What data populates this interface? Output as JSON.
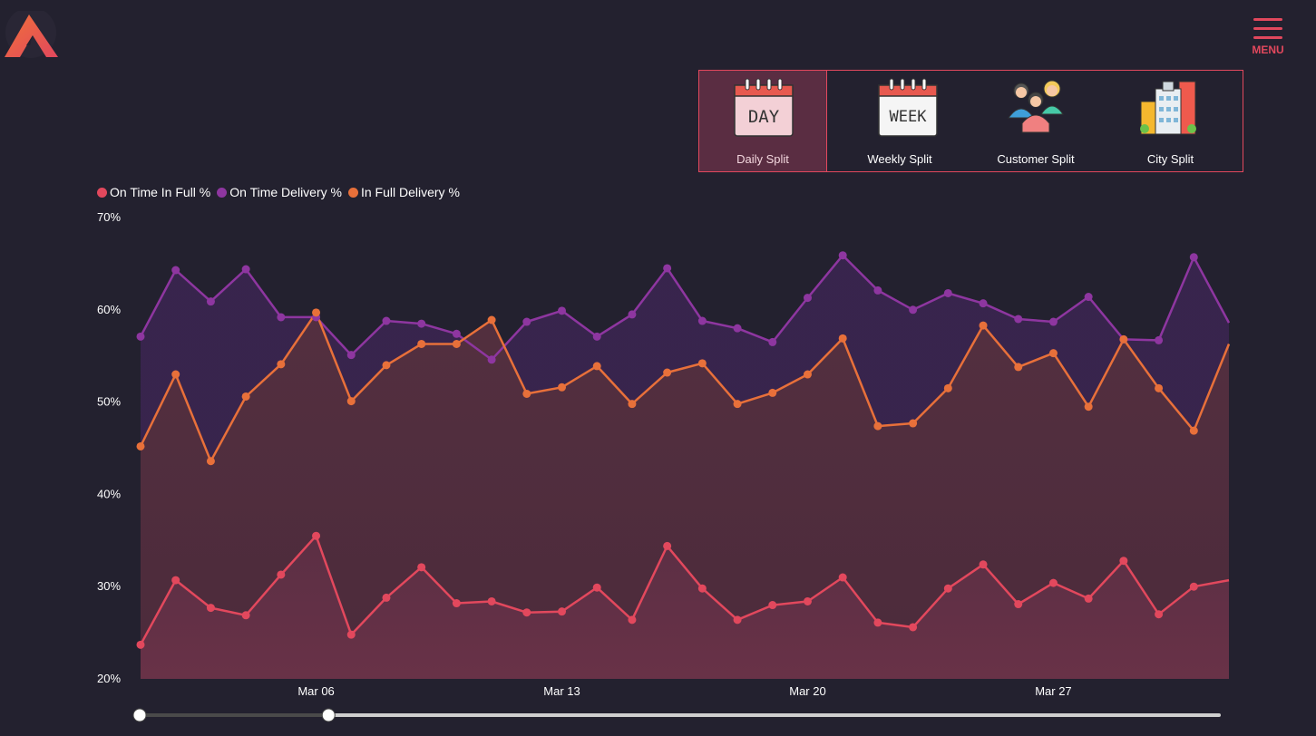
{
  "header": {
    "logo_icon": "brand-logo-icon",
    "menu_label": "MENU",
    "menu_icon": "hamburger-icon"
  },
  "splits": [
    {
      "label": "Daily Split",
      "icon": "day-calendar-icon",
      "icon_text": "DAY",
      "active": true
    },
    {
      "label": "Weekly Split",
      "icon": "week-calendar-icon",
      "icon_text": "WEEK",
      "active": false
    },
    {
      "label": "Customer Split",
      "icon": "customers-icon",
      "active": false
    },
    {
      "label": "City Split",
      "icon": "city-buildings-icon",
      "active": false
    }
  ],
  "colors": {
    "accent": "#e2485d",
    "otif": "#e2485d",
    "otd": "#8e36a0",
    "ifd": "#e8703a",
    "background": "#23212f"
  },
  "chart_data": {
    "type": "area",
    "title": "",
    "xlabel": "",
    "ylabel": "",
    "x": [
      "Mar 01",
      "Mar 02",
      "Mar 03",
      "Mar 04",
      "Mar 05",
      "Mar 06",
      "Mar 07",
      "Mar 08",
      "Mar 09",
      "Mar 10",
      "Mar 11",
      "Mar 12",
      "Mar 13",
      "Mar 14",
      "Mar 15",
      "Mar 16",
      "Mar 17",
      "Mar 18",
      "Mar 19",
      "Mar 20",
      "Mar 21",
      "Mar 22",
      "Mar 23",
      "Mar 24",
      "Mar 25",
      "Mar 26",
      "Mar 27",
      "Mar 28",
      "Mar 29",
      "Mar 30",
      "Mar 31",
      "Apr 01"
    ],
    "x_ticks": [
      "Mar 06",
      "Mar 13",
      "Mar 20",
      "Mar 27"
    ],
    "y_ticks": [
      "20%",
      "30%",
      "40%",
      "50%",
      "60%",
      "70%"
    ],
    "ylim": [
      20,
      70
    ],
    "grid": false,
    "legend_position": "top-left",
    "series": [
      {
        "name": "On Time In Full %",
        "color": "#e2485d",
        "values": [
          23.7,
          30.7,
          27.7,
          26.9,
          31.3,
          35.5,
          24.8,
          28.8,
          32.1,
          28.2,
          28.4,
          27.2,
          27.3,
          29.9,
          26.4,
          34.4,
          29.8,
          26.4,
          28.0,
          28.4,
          31.0,
          26.1,
          25.6,
          29.8,
          32.4,
          28.1,
          30.4,
          28.7,
          32.8,
          27.0,
          30.0,
          30.7
        ]
      },
      {
        "name": "On Time Delivery %",
        "color": "#8e36a0",
        "values": [
          57.1,
          64.3,
          60.9,
          64.4,
          59.2,
          59.2,
          55.1,
          58.8,
          58.5,
          57.4,
          54.6,
          58.7,
          59.9,
          57.1,
          59.5,
          64.5,
          58.8,
          58.0,
          56.5,
          61.3,
          65.9,
          62.1,
          60.0,
          61.8,
          60.7,
          59.0,
          58.7,
          61.4,
          56.8,
          56.7,
          65.7,
          58.6
        ]
      },
      {
        "name": "In Full Delivery %",
        "color": "#e8703a",
        "values": [
          45.2,
          53.0,
          43.6,
          50.6,
          54.1,
          59.7,
          50.1,
          54.0,
          56.3,
          56.3,
          58.9,
          50.9,
          51.6,
          53.9,
          49.8,
          53.2,
          54.2,
          49.8,
          51.0,
          53.0,
          56.9,
          47.4,
          47.7,
          51.5,
          58.3,
          53.8,
          55.3,
          49.5,
          56.8,
          51.5,
          46.9,
          56.3
        ]
      }
    ],
    "range_slider": {
      "start": 0,
      "end": 0.175
    }
  }
}
